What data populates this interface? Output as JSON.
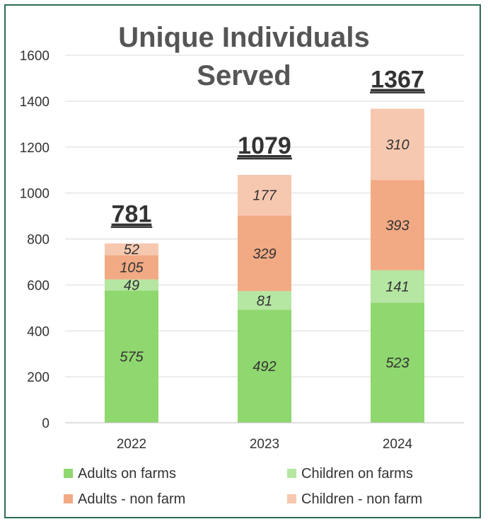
{
  "chart_data": {
    "type": "bar",
    "stacked": true,
    "title_lines": [
      "Unique Individuals",
      "Served"
    ],
    "xlabel": "",
    "ylabel": "",
    "categories": [
      "2022",
      "2023",
      "2024"
    ],
    "ylim": [
      0,
      1600
    ],
    "yticks": [
      "0",
      "200",
      "400",
      "600",
      "800",
      "1000",
      "1200",
      "1400",
      "1600"
    ],
    "grid": true,
    "legend_position": "bottom",
    "totals": [
      "781",
      "1079",
      "1367"
    ],
    "series": [
      {
        "name": "Adults on farms",
        "values": [
          575,
          492,
          523
        ],
        "color": "#8fd76f"
      },
      {
        "name": "Children on farms",
        "values": [
          49,
          81,
          141
        ],
        "color": "#b5e6a2"
      },
      {
        "name": "Adults - non farm",
        "values": [
          105,
          329,
          393
        ],
        "color": "#f2aa84"
      },
      {
        "name": "Children - non farm",
        "values": [
          52,
          177,
          310
        ],
        "color": "#f7c8b0"
      }
    ]
  }
}
